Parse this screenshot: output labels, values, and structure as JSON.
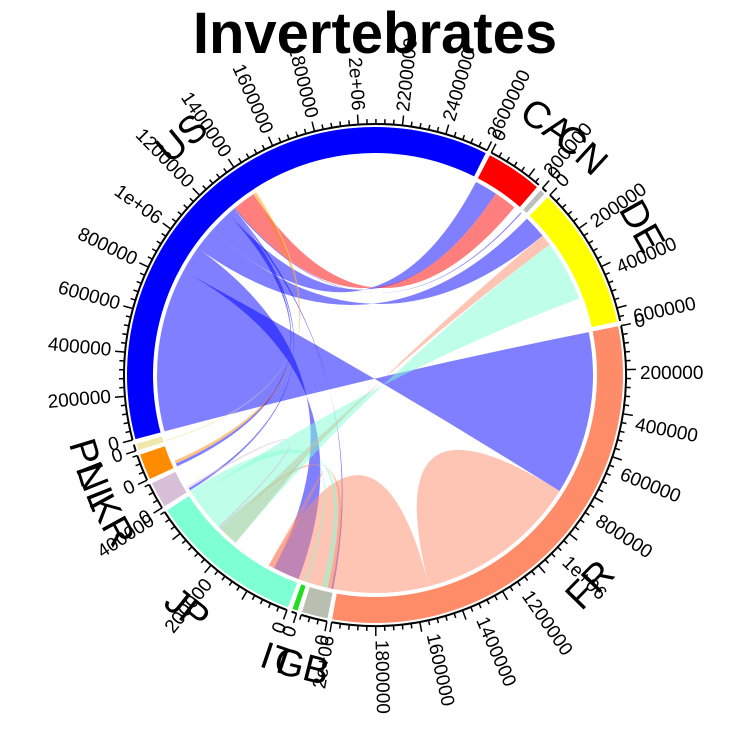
{
  "chart_data": {
    "type": "chord",
    "title": "Invertebrates",
    "sectors": [
      {
        "name": "US",
        "total": 1300000,
        "color": "#0000FF",
        "ticks": [
          "0",
          "200000",
          "400000",
          "600000",
          "800000",
          "1e+06",
          "1200000",
          "1400000",
          "1600000",
          "1800000",
          "2e+06",
          "2200000",
          "2400000",
          "2600000"
        ]
      },
      {
        "name": "CA",
        "total": 130000,
        "color": "#FF0000",
        "ticks": [
          "0",
          "200000"
        ]
      },
      {
        "name": "CN",
        "total": 12000,
        "color": "#BEBEBE",
        "ticks": [
          "0"
        ]
      },
      {
        "name": "DE",
        "total": 330000,
        "color": "#FFFF00",
        "ticks": [
          "0",
          "200000",
          "400000",
          "600000"
        ]
      },
      {
        "name": "FR",
        "total": 1100000,
        "color": "#FF8C69",
        "ticks": [
          "0",
          "200000",
          "400000",
          "600000",
          "800000",
          "1e+06",
          "1200000",
          "1400000",
          "1600000",
          "1800000",
          "2e+06"
        ]
      },
      {
        "name": "GB",
        "total": 60000,
        "color": "#B8BFB0",
        "ticks": [
          "0"
        ]
      },
      {
        "name": "IT",
        "total": 12000,
        "color": "#22DD22",
        "ticks": [
          "0"
        ]
      },
      {
        "name": "JP",
        "total": 360000,
        "color": "#7FFFD4",
        "ticks": [
          "0",
          "200000",
          "400000"
        ]
      },
      {
        "name": "KR",
        "total": 60000,
        "color": "#D8BFD8",
        "ticks": [
          "0"
        ]
      },
      {
        "name": "NL",
        "total": 60000,
        "color": "#FF8C00",
        "ticks": [
          "0"
        ]
      },
      {
        "name": "PL",
        "total": 15000,
        "color": "#EEE8AA",
        "ticks": [
          "0"
        ]
      }
    ],
    "links": [
      {
        "from": "US",
        "to": "FR",
        "value": 430000
      },
      {
        "from": "US",
        "to": "JP",
        "value": 70000
      },
      {
        "from": "US",
        "to": "DE",
        "value": 60000
      },
      {
        "from": "US",
        "to": "CA",
        "value": 60000
      },
      {
        "from": "US",
        "to": "NL",
        "value": 8000
      },
      {
        "from": "US",
        "to": "KR",
        "value": 6000
      },
      {
        "from": "US",
        "to": "GB",
        "value": 5000
      },
      {
        "from": "US",
        "to": "CN",
        "value": 3000
      },
      {
        "from": "CA",
        "to": "US",
        "value": 60000
      },
      {
        "from": "FR",
        "to": "FR",
        "value": 430000
      },
      {
        "from": "FR",
        "to": "JP",
        "value": 120000
      },
      {
        "from": "FR",
        "to": "DE",
        "value": 30000
      },
      {
        "from": "FR",
        "to": "GB",
        "value": 10000
      },
      {
        "from": "JP",
        "to": "DE",
        "value": 160000
      },
      {
        "from": "JP",
        "to": "GB",
        "value": 15000
      },
      {
        "from": "JP",
        "to": "IT",
        "value": 5000
      },
      {
        "from": "KR",
        "to": "FR",
        "value": 6000
      },
      {
        "from": "NL",
        "to": "US",
        "value": 8000
      },
      {
        "from": "PL",
        "to": "US",
        "value": 4000
      }
    ]
  }
}
